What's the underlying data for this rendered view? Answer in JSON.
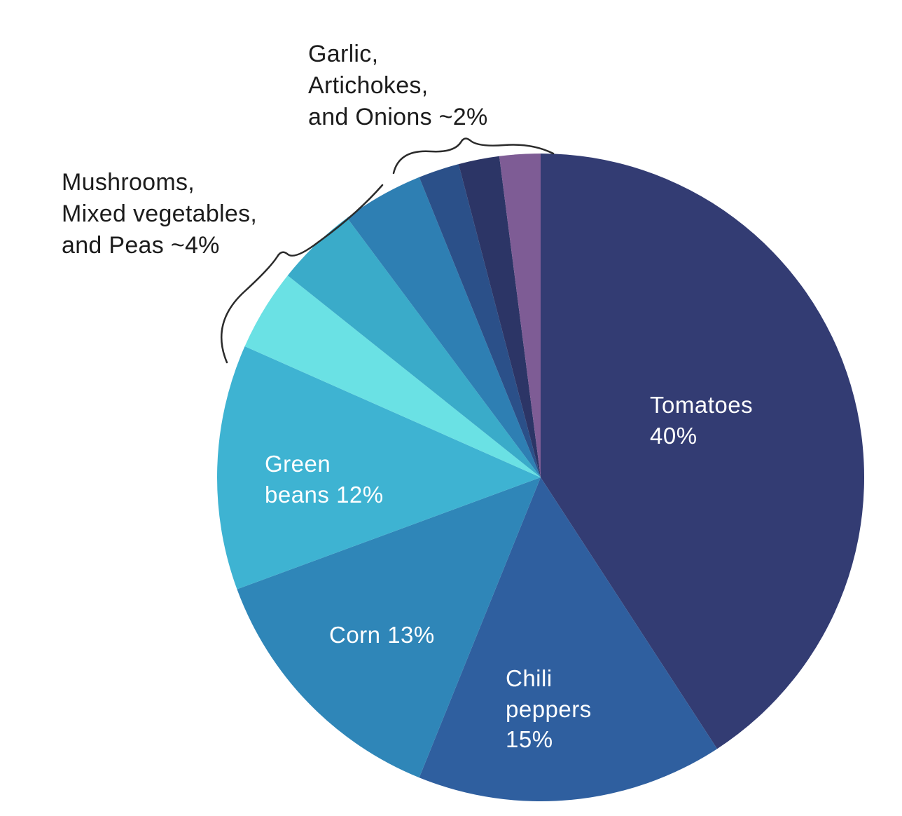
{
  "chart_data": {
    "type": "pie",
    "title": "",
    "start_angle_deg": -90,
    "direction": "clockwise",
    "slices": [
      {
        "label": "Tomatoes",
        "value": 40,
        "color": "#333c73",
        "text_color": "#ffffff"
      },
      {
        "label": "Chili peppers",
        "value": 15,
        "color": "#2f5f9f",
        "text_color": "#ffffff"
      },
      {
        "label": "Corn",
        "value": 13,
        "color": "#2f86b8",
        "text_color": "#ffffff"
      },
      {
        "label": "Green beans",
        "value": 12,
        "color": "#3eb3d2",
        "text_color": "#ffffff"
      },
      {
        "label": "Peas",
        "value": 4,
        "color": "#6ae1e4"
      },
      {
        "label": "Mixed vegetables",
        "value": 4,
        "color": "#3aabc9"
      },
      {
        "label": "Mushrooms",
        "value": 4,
        "color": "#2e7fb3"
      },
      {
        "label": "Onions",
        "value": 2,
        "color": "#2b5089"
      },
      {
        "label": "Artichokes",
        "value": 2,
        "color": "#2c3566"
      },
      {
        "label": "Garlic",
        "value": 2,
        "color": "#7e5c95"
      }
    ],
    "slice_labels": {
      "tomatoes": [
        "Tomatoes",
        "40%"
      ],
      "chili": [
        "Chili",
        "peppers",
        "15%"
      ],
      "corn": [
        "Corn 13%"
      ],
      "green_beans": [
        "Green",
        "beans 12%"
      ]
    },
    "annotations": [
      {
        "id": "garlic-artichokes-onions",
        "lines": [
          "Garlic,",
          "Artichokes,",
          "and Onions ~2%"
        ]
      },
      {
        "id": "mushrooms-mixedveg-peas",
        "lines": [
          "Mushrooms,",
          "Mixed vegetables,",
          "and Peas ~4%"
        ]
      }
    ]
  },
  "colors": {
    "background": "#ffffff",
    "annotation_text": "#1c1c1c",
    "brace_stroke": "#2b2b2b"
  }
}
